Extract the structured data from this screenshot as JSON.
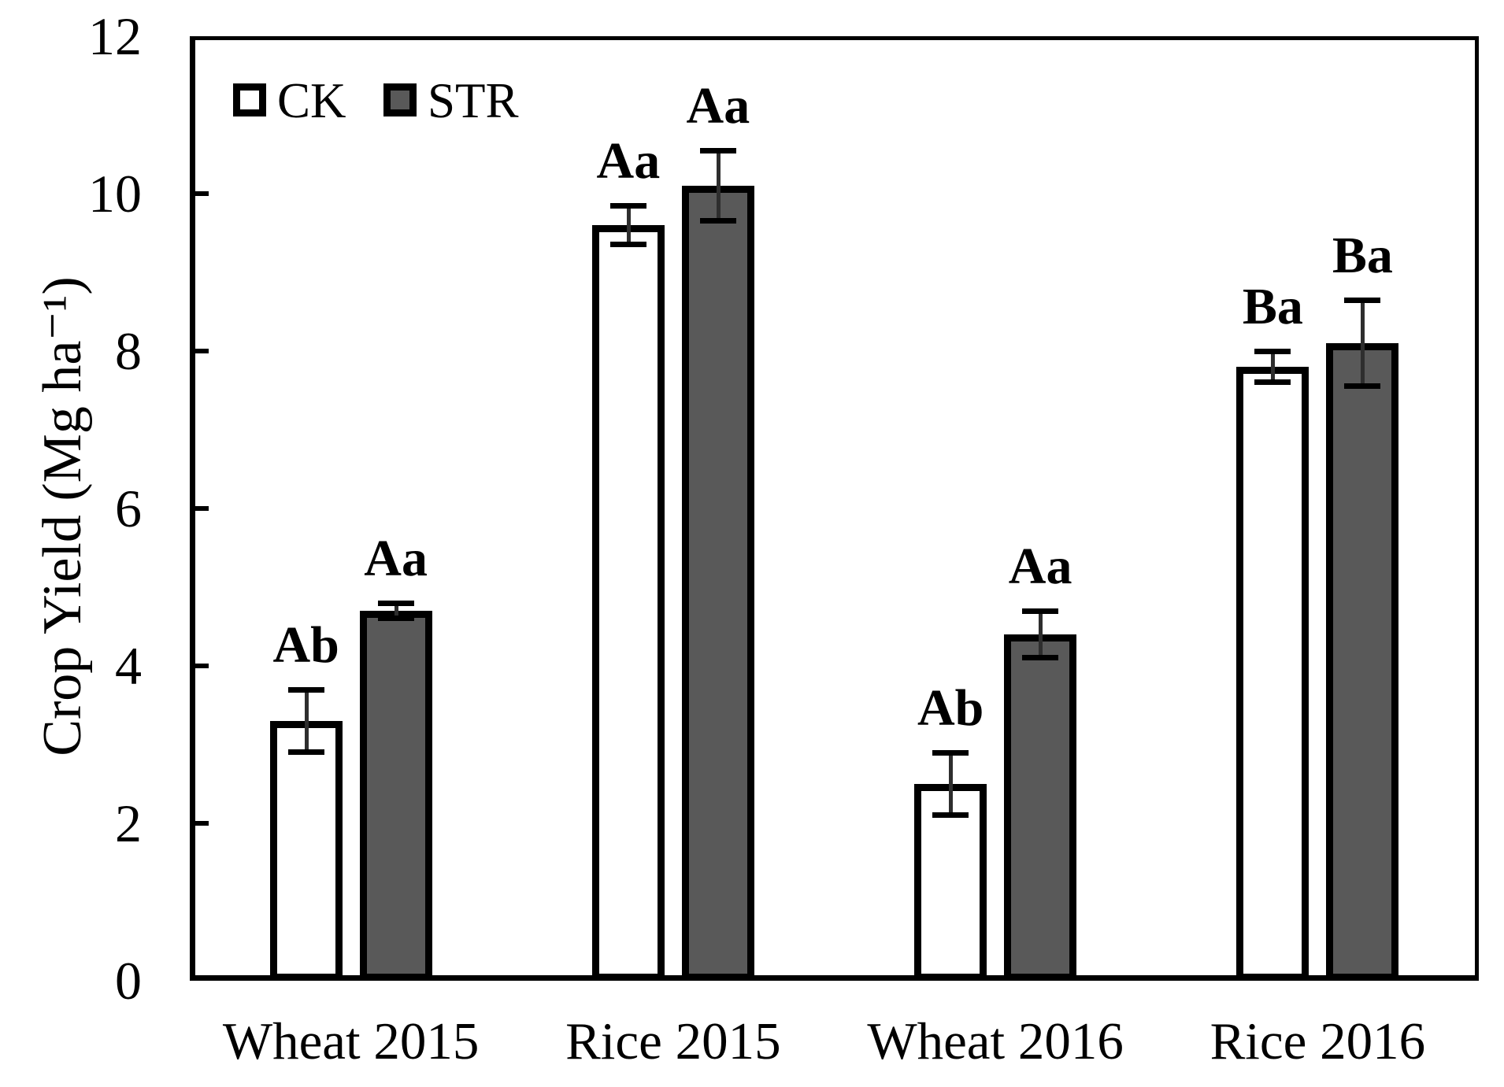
{
  "chart_data": {
    "type": "bar",
    "title": "",
    "xlabel": "",
    "ylabel": "Crop Yield (Mg ha⁻¹)",
    "ylim": [
      0,
      12
    ],
    "yticks": [
      0,
      2,
      4,
      6,
      8,
      10,
      12
    ],
    "grid": false,
    "legend_position": "top-left-inside",
    "categories": [
      "Wheat 2015",
      "Rice 2015",
      "Wheat 2016",
      "Rice 2016"
    ],
    "series": [
      {
        "name": "CK",
        "fill": "#ffffff",
        "border": "#000000",
        "values": [
          3.3,
          9.6,
          2.5,
          7.8
        ],
        "errors": [
          0.4,
          0.25,
          0.4,
          0.2
        ],
        "sig_letters": [
          "Ab",
          "Aa",
          "Ab",
          "Ba"
        ]
      },
      {
        "name": "STR",
        "fill": "#595959",
        "border": "#000000",
        "values": [
          4.7,
          10.1,
          4.4,
          8.1
        ],
        "errors": [
          0.1,
          0.45,
          0.3,
          0.55
        ],
        "sig_letters": [
          "Aa",
          "Aa",
          "Aa",
          "Ba"
        ]
      }
    ],
    "colors": {
      "axis": "#000000",
      "text": "#000000",
      "background": "#ffffff"
    }
  }
}
